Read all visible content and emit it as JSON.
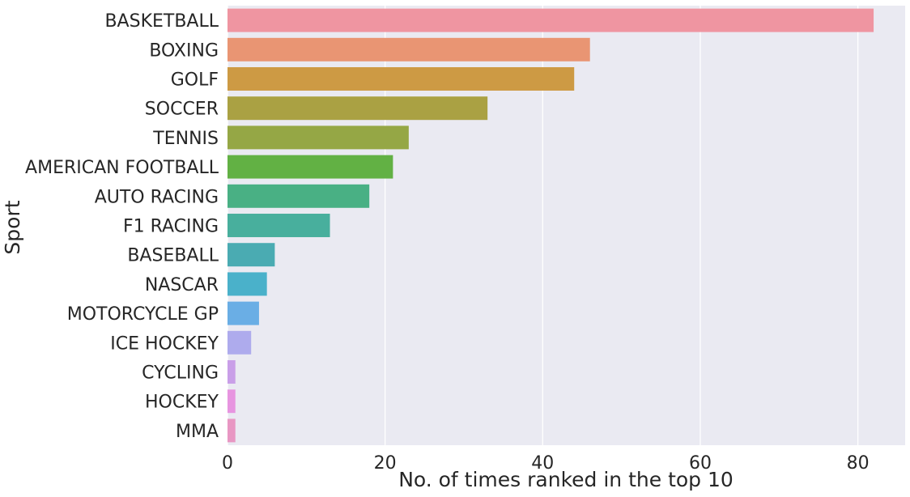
{
  "chart_data": {
    "type": "bar",
    "orientation": "horizontal",
    "title": "",
    "xlabel": "No. of times ranked in the top 10",
    "ylabel": "Sport",
    "xlim": [
      0,
      86
    ],
    "xticks": [
      0,
      20,
      40,
      60,
      80
    ],
    "grid": true,
    "categories": [
      "BASKETBALL",
      "BOXING",
      "GOLF",
      "SOCCER",
      "TENNIS",
      "AMERICAN FOOTBALL",
      "AUTO RACING",
      "F1 RACING",
      "BASEBALL",
      "NASCAR",
      "MOTORCYCLE GP",
      "ICE HOCKEY",
      "CYCLING",
      "HOCKEY",
      "MMA"
    ],
    "values": [
      82,
      46,
      44,
      33,
      23,
      21,
      18,
      13,
      6,
      5,
      4,
      3,
      1,
      1,
      1
    ],
    "colors": [
      "#ef95a1",
      "#e99573",
      "#cd9a44",
      "#aaa143",
      "#95a745",
      "#62b144",
      "#49b084",
      "#48af9d",
      "#4aabb2",
      "#4ab1ca",
      "#6aaee5",
      "#aeabed",
      "#c99fe8",
      "#e795e0",
      "#e897c3"
    ],
    "background": "#eaeaf2"
  }
}
